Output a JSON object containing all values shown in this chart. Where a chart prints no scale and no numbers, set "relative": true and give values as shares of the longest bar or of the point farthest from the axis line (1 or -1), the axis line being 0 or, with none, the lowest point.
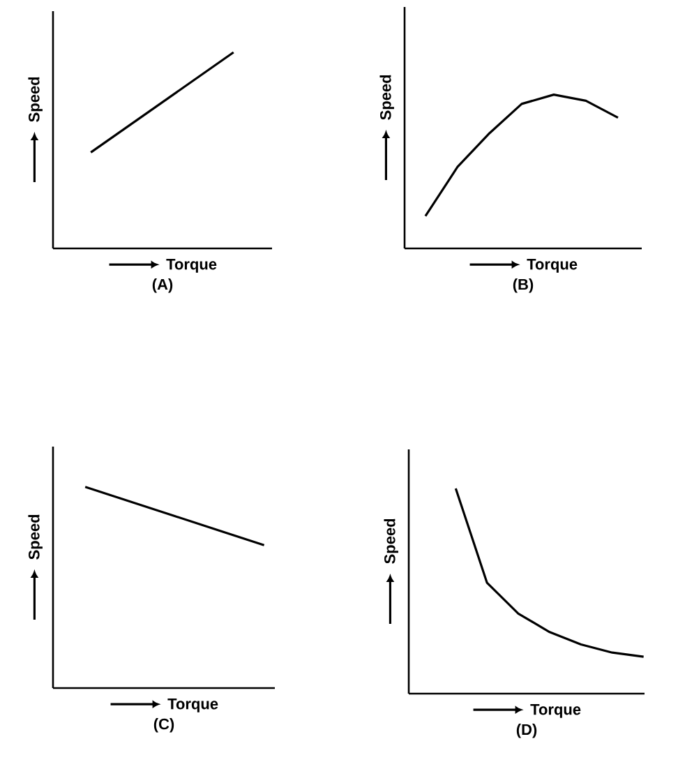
{
  "chart_data": [
    {
      "type": "line",
      "title": "(A)",
      "xlabel": "Torque",
      "ylabel": "Speed",
      "relative": true,
      "marker": "none",
      "categories": [
        null,
        null
      ],
      "series": [
        {
          "color": "#000000",
          "values": [
            0.49,
            1
          ]
        }
      ]
    },
    {
      "type": "line",
      "title": "(B)",
      "xlabel": "Torque",
      "ylabel": "Speed",
      "relative": true,
      "marker": "none",
      "categories": [
        null,
        null,
        null,
        null,
        null,
        null,
        null
      ],
      "series": [
        {
          "color": "#000000",
          "values": [
            0.21,
            0.53,
            0.75,
            0.94,
            1,
            0.96,
            0.85
          ]
        }
      ]
    },
    {
      "type": "line",
      "title": "(C)",
      "xlabel": "Torque",
      "ylabel": "Speed",
      "relative": true,
      "marker": "none",
      "categories": [
        null,
        null,
        null
      ],
      "series": [
        {
          "color": "#000000",
          "values": [
            1,
            0.855,
            0.71
          ]
        }
      ]
    },
    {
      "type": "line",
      "title": "(D)",
      "xlabel": "Torque",
      "ylabel": "Speed",
      "relative": true,
      "marker": "none",
      "categories": [
        null,
        null,
        null,
        null,
        null,
        null,
        null
      ],
      "series": [
        {
          "color": "#000000",
          "values": [
            1,
            0.54,
            0.39,
            0.3,
            0.24,
            0.2,
            0.18
          ]
        }
      ]
    }
  ]
}
